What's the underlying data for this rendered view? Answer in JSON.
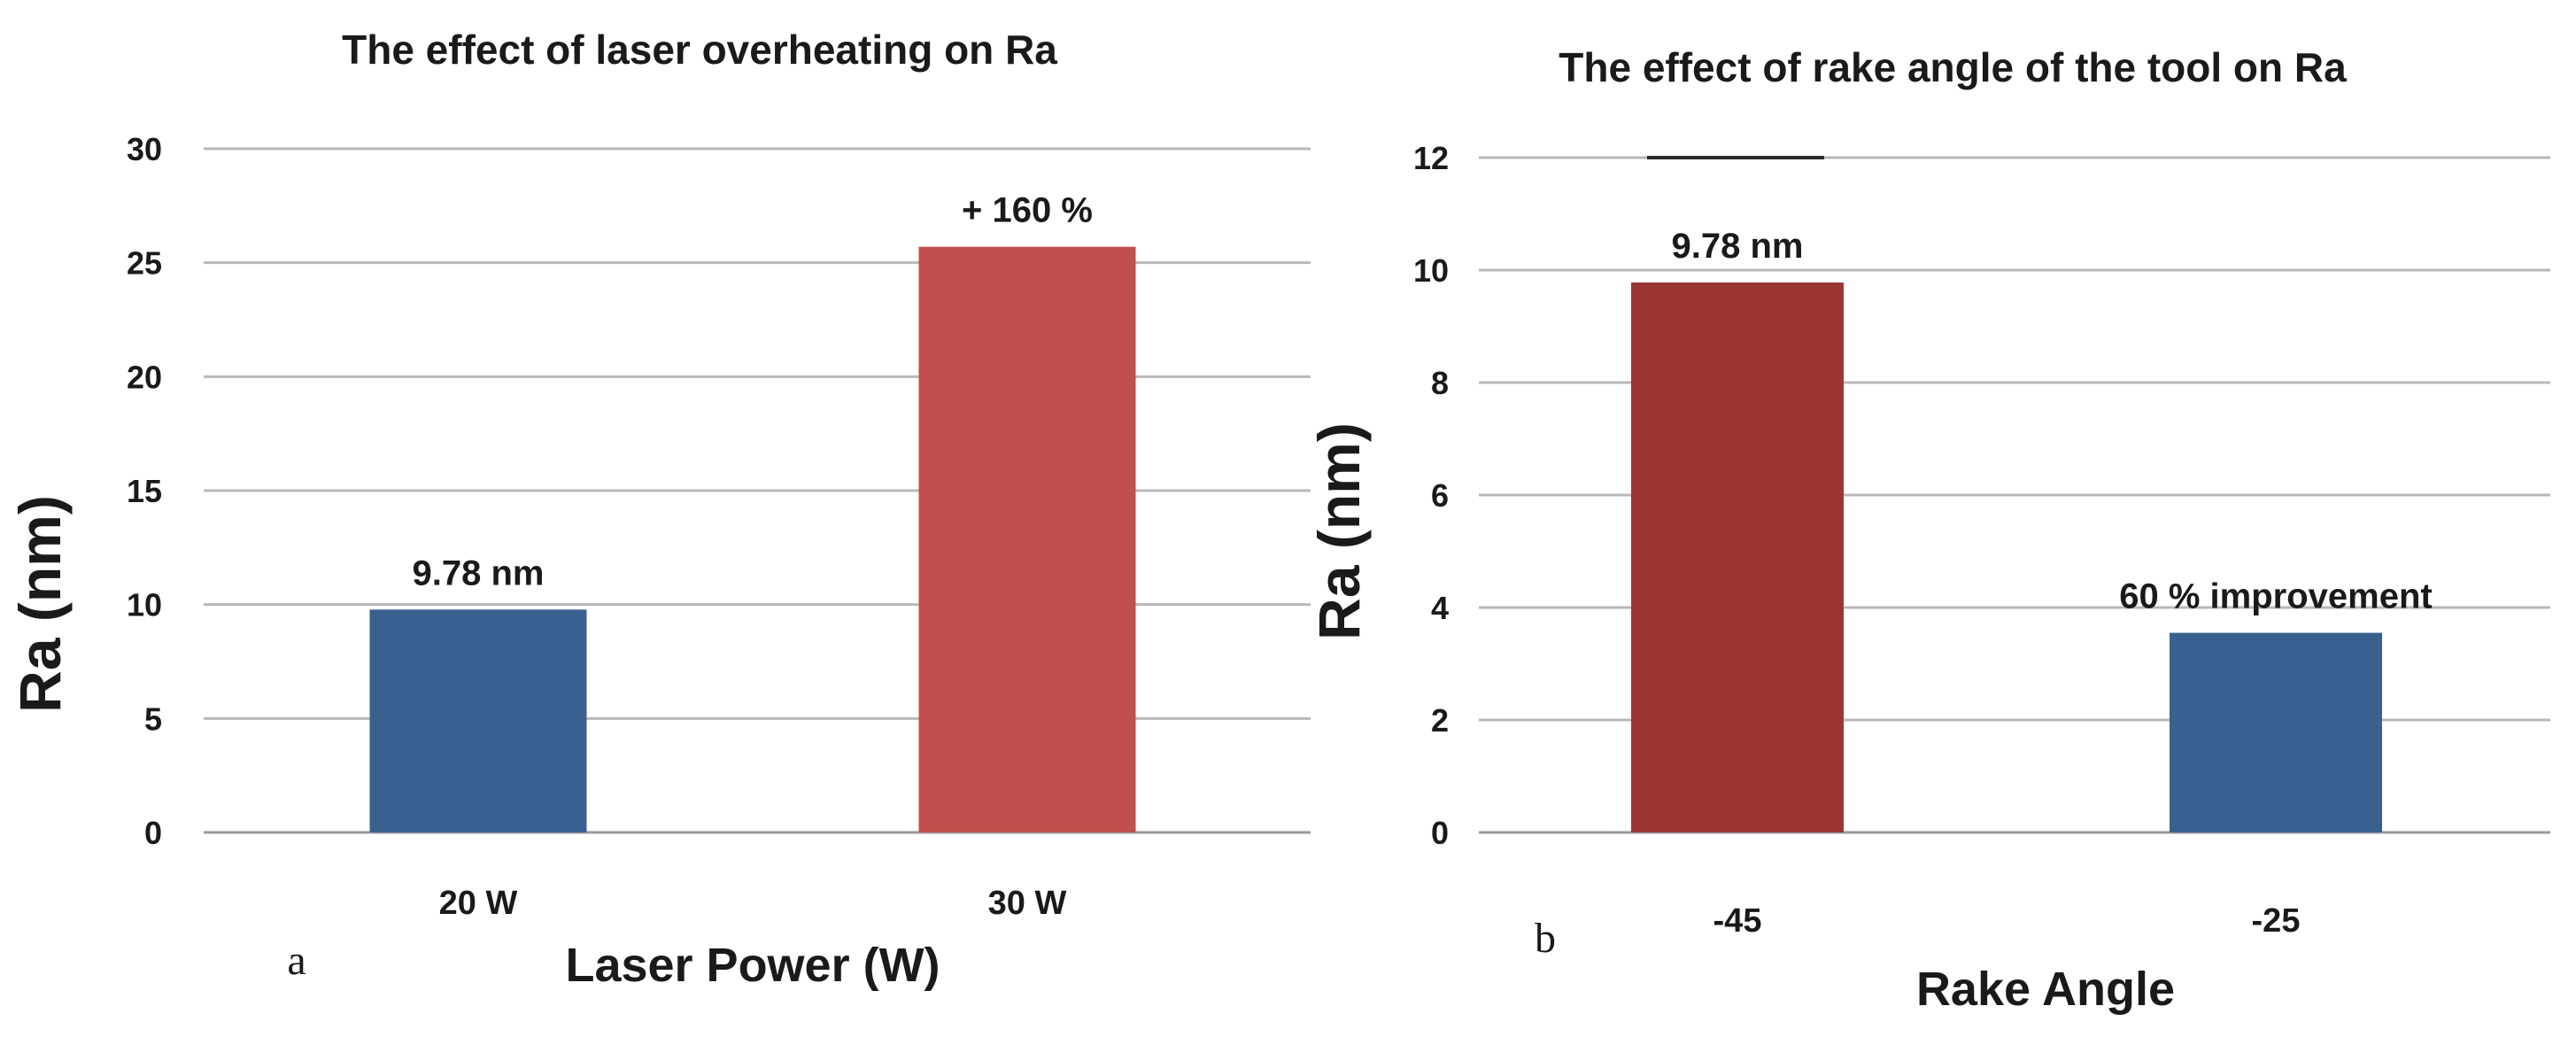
{
  "chart_data": [
    {
      "type": "bar",
      "title": "The effect of laser overheating on Ra",
      "panel_label": "a",
      "xlabel": "Laser Power (W)",
      "ylabel": "Ra (nm)",
      "categories": [
        "20 W",
        "30 W"
      ],
      "values": [
        9.78,
        25.7
      ],
      "bar_colors": [
        "#3a6090",
        "#c0504d"
      ],
      "data_labels": [
        "9.78 nm",
        "+ 160 %"
      ],
      "ylim": [
        0,
        30
      ],
      "yticks": [
        0,
        5,
        10,
        15,
        20,
        25,
        30
      ],
      "grid": true
    },
    {
      "type": "bar",
      "title": "The effect of rake angle of the tool on Ra",
      "panel_label": "b",
      "xlabel": "Rake Angle",
      "ylabel": "Ra (nm)",
      "categories": [
        "-45",
        "-25"
      ],
      "values": [
        9.78,
        3.55
      ],
      "bar_colors": [
        "#9b3635",
        "#3a6090"
      ],
      "data_labels": [
        "9.78 nm",
        "60 % improvement"
      ],
      "ylim": [
        0,
        12
      ],
      "yticks": [
        0,
        2,
        4,
        6,
        8,
        10,
        12
      ],
      "grid": true
    }
  ]
}
